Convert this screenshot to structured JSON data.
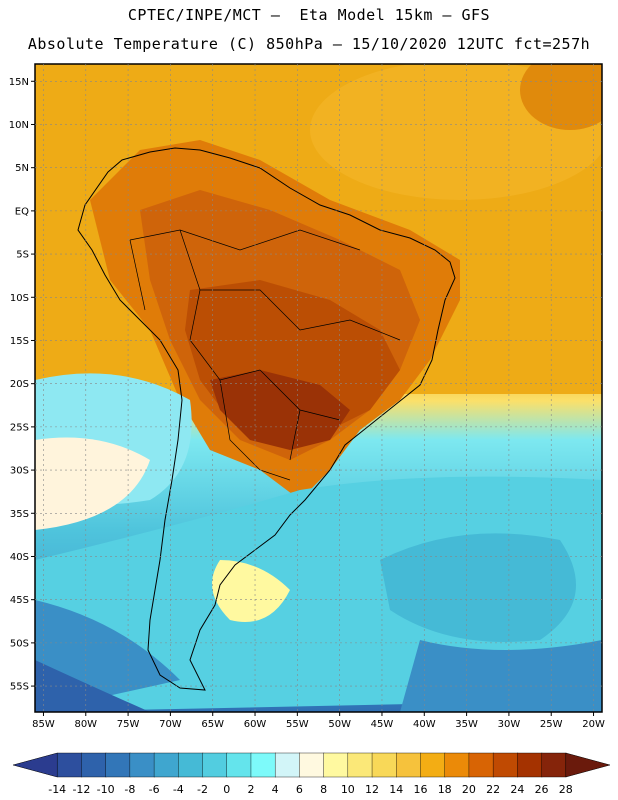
{
  "header": {
    "line1": "CPTEC/INPE/MCT –  Eta Model 15km – GFS",
    "line2": "Absolute Temperature (C) 850hPa – 15/10/2020 12UTC fct=257h"
  },
  "map": {
    "lat_labels": [
      "15N",
      "10N",
      "5N",
      "EQ",
      "5S",
      "10S",
      "15S",
      "20S",
      "25S",
      "30S",
      "35S",
      "40S",
      "45S",
      "50S",
      "55S"
    ],
    "lat_values": [
      15,
      10,
      5,
      0,
      -5,
      -10,
      -15,
      -20,
      -25,
      -30,
      -35,
      -40,
      -45,
      -50,
      -55
    ],
    "lon_labels": [
      "85W",
      "80W",
      "75W",
      "70W",
      "65W",
      "60W",
      "55W",
      "50W",
      "45W",
      "40W",
      "35W",
      "30W",
      "25W",
      "20W"
    ],
    "lon_values": [
      -85,
      -80,
      -75,
      -70,
      -65,
      -60,
      -55,
      -50,
      -45,
      -40,
      -35,
      -30,
      -25,
      -20
    ],
    "lat_range": [
      -58,
      17
    ],
    "lon_range": [
      -86,
      -19
    ]
  },
  "colorbar": {
    "labels": [
      "-14",
      "-12",
      "-10",
      "-8",
      "-6",
      "-4",
      "-2",
      "0",
      "2",
      "4",
      "6",
      "8",
      "10",
      "12",
      "14",
      "16",
      "18",
      "20",
      "22",
      "24",
      "26",
      "28"
    ],
    "colors": [
      "#2b3c8f",
      "#2d4f9e",
      "#2e62ab",
      "#3276b8",
      "#3a8fc6",
      "#3fa6cf",
      "#45bad6",
      "#52cde0",
      "#64e4ec",
      "#7dfafa",
      "#d2f5f8",
      "#fff9e0",
      "#fff9a0",
      "#fbe878",
      "#f8d858",
      "#f6c23c",
      "#f3ad14",
      "#eb8a08",
      "#d86404",
      "#c04a02",
      "#a43200",
      "#85240a",
      "#6a1a0c"
    ]
  }
}
